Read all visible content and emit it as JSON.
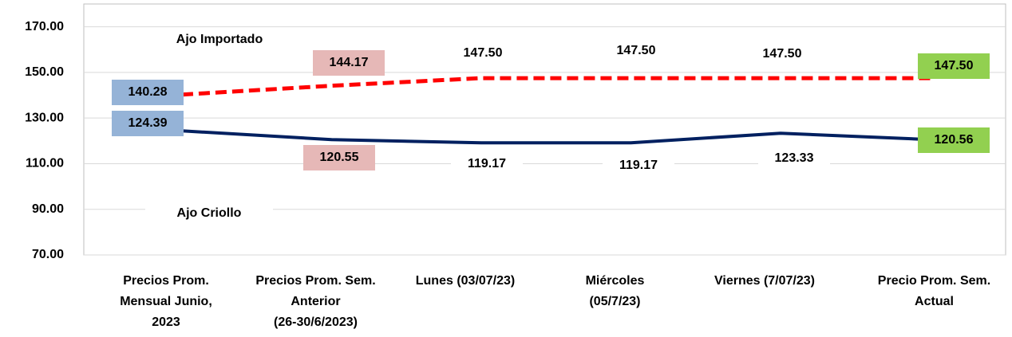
{
  "chart_data": {
    "type": "line",
    "categories": [
      "Precios Prom.\nMensual Junio,\n2023",
      "Precios Prom. Sem.\nAnterior\n(26-30/6/2023)",
      "Lunes  (03/07/23)",
      "Miércoles\n(05/7/23)",
      "Viernes  (7/07/23)",
      "Precio Prom. Sem.\nActual"
    ],
    "series": [
      {
        "name": "Ajo Importado",
        "color": "#ff0000",
        "dashed": true,
        "values": [
          140.28,
          144.17,
          147.5,
          147.5,
          147.5,
          147.5
        ],
        "value_labels": [
          "140.28",
          "144.17",
          "147.50",
          "147.50",
          "147.50",
          "147.50"
        ]
      },
      {
        "name": "Ajo Criollo",
        "color": "#002060",
        "dashed": false,
        "values": [
          124.39,
          120.55,
          119.17,
          119.17,
          123.33,
          120.56
        ],
        "value_labels": [
          "124.39",
          "120.55",
          "119.17",
          "119.17",
          "123.33",
          "120.56"
        ]
      }
    ],
    "ylim": [
      70,
      180
    ],
    "yticks": [
      {
        "value": 70,
        "label": "70.00"
      },
      {
        "value": 90,
        "label": "90.00"
      },
      {
        "value": 110,
        "label": "110.00"
      },
      {
        "value": 130,
        "label": "130.00"
      },
      {
        "value": 150,
        "label": "150.00"
      },
      {
        "value": 170,
        "label": "170.00"
      }
    ],
    "grid": true
  }
}
